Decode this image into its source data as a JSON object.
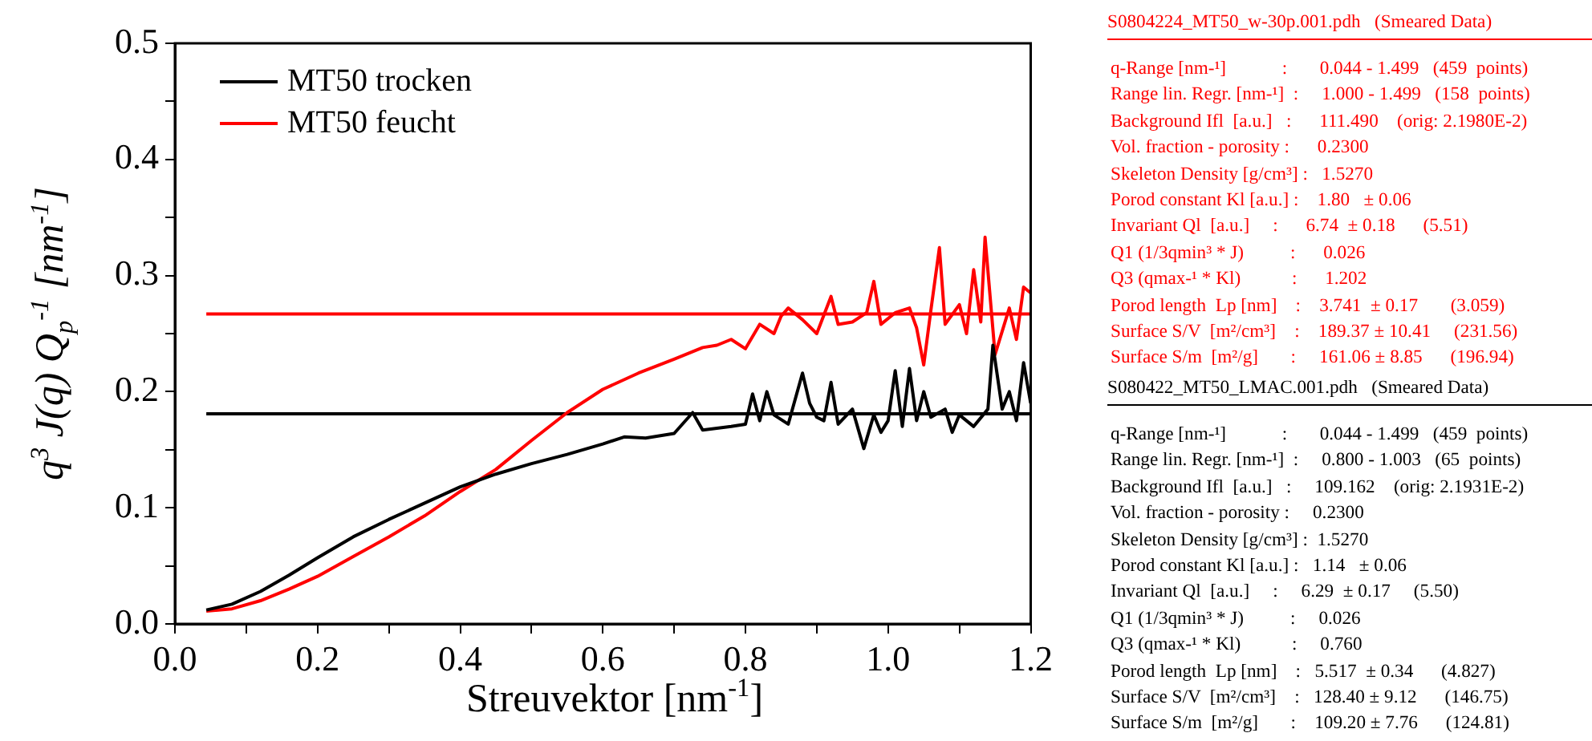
{
  "chart_data": {
    "type": "line",
    "xlabel": "Streuvektor [nm$^{-1}$]",
    "ylabel": "q$^{3}$ J(q) Q$_{p}$$^{-1}$ [nm$^{-1}$]",
    "xlim": [
      0,
      1.2
    ],
    "ylim": [
      0,
      0.5
    ],
    "xticks": [
      {
        "value": 0,
        "label": "0.0"
      },
      {
        "value": 0.1,
        "label": null
      },
      {
        "value": 0.2,
        "label": "0.2"
      },
      {
        "value": 0.3,
        "label": null
      },
      {
        "value": 0.4,
        "label": "0.4"
      },
      {
        "value": 0.5,
        "label": null
      },
      {
        "value": 0.6,
        "label": "0.6"
      },
      {
        "value": 0.7,
        "label": null
      },
      {
        "value": 0.8,
        "label": "0.8"
      },
      {
        "value": 0.9,
        "label": null
      },
      {
        "value": 1.0,
        "label": "1.0"
      },
      {
        "value": 1.1,
        "label": null
      },
      {
        "value": 1.2,
        "label": "1.2"
      }
    ],
    "yticks": [
      {
        "value": 0,
        "label": "0.0"
      },
      {
        "value": 0.05,
        "label": null
      },
      {
        "value": 0.1,
        "label": "0.1"
      },
      {
        "value": 0.15,
        "label": null
      },
      {
        "value": 0.2,
        "label": "0.2"
      },
      {
        "value": 0.25,
        "label": null
      },
      {
        "value": 0.3,
        "label": "0.3"
      },
      {
        "value": 0.35,
        "label": null
      },
      {
        "value": 0.4,
        "label": "0.4"
      },
      {
        "value": 0.45,
        "label": null
      },
      {
        "value": 0.5,
        "label": "0.5"
      }
    ],
    "grid": false,
    "legend": "top left",
    "marker": "none",
    "line_style": "solid",
    "series": [
      {
        "name": "MT50 trocken",
        "color": "#000000",
        "x": [
          0.044,
          0.08,
          0.12,
          0.16,
          0.2,
          0.25,
          0.3,
          0.35,
          0.4,
          0.45,
          0.5,
          0.55,
          0.6,
          0.63,
          0.66,
          0.7,
          0.726,
          0.74,
          0.78,
          0.8,
          0.81,
          0.82,
          0.83,
          0.84,
          0.86,
          0.88,
          0.89,
          0.9,
          0.91,
          0.92,
          0.93,
          0.95,
          0.966,
          0.98,
          0.99,
          1.0,
          1.01,
          1.02,
          1.03,
          1.04,
          1.05,
          1.06,
          1.08,
          1.09,
          1.1,
          1.12,
          1.14,
          1.147,
          1.16,
          1.17,
          1.18,
          1.19,
          1.2
        ],
        "values": [
          0.012,
          0.017,
          0.028,
          0.042,
          0.057,
          0.075,
          0.09,
          0.104,
          0.118,
          0.129,
          0.138,
          0.146,
          0.155,
          0.161,
          0.16,
          0.164,
          0.182,
          0.167,
          0.17,
          0.172,
          0.198,
          0.175,
          0.2,
          0.18,
          0.172,
          0.216,
          0.19,
          0.178,
          0.175,
          0.208,
          0.172,
          0.185,
          0.151,
          0.18,
          0.165,
          0.175,
          0.218,
          0.17,
          0.22,
          0.175,
          0.2,
          0.178,
          0.185,
          0.165,
          0.18,
          0.17,
          0.185,
          0.24,
          0.185,
          0.2,
          0.175,
          0.225,
          0.19
        ]
      },
      {
        "name": "MT50 feucht",
        "color": "#ff0000",
        "x": [
          0.044,
          0.08,
          0.12,
          0.16,
          0.2,
          0.25,
          0.3,
          0.35,
          0.4,
          0.45,
          0.5,
          0.55,
          0.6,
          0.65,
          0.7,
          0.74,
          0.76,
          0.78,
          0.8,
          0.82,
          0.84,
          0.85,
          0.86,
          0.88,
          0.9,
          0.92,
          0.93,
          0.95,
          0.97,
          0.98,
          0.99,
          1.01,
          1.03,
          1.04,
          1.05,
          1.06,
          1.072,
          1.08,
          1.1,
          1.11,
          1.12,
          1.13,
          1.136,
          1.15,
          1.17,
          1.18,
          1.19,
          1.2
        ],
        "values": [
          0.011,
          0.013,
          0.02,
          0.03,
          0.041,
          0.058,
          0.075,
          0.093,
          0.114,
          0.133,
          0.158,
          0.182,
          0.202,
          0.216,
          0.228,
          0.238,
          0.24,
          0.245,
          0.237,
          0.258,
          0.25,
          0.265,
          0.272,
          0.262,
          0.25,
          0.282,
          0.258,
          0.26,
          0.268,
          0.295,
          0.258,
          0.268,
          0.272,
          0.255,
          0.223,
          0.27,
          0.324,
          0.258,
          0.275,
          0.25,
          0.305,
          0.26,
          0.333,
          0.232,
          0.272,
          0.245,
          0.29,
          0.285
        ]
      },
      {
        "color": "#ff0000",
        "x": [
          0.044,
          1.2
        ],
        "values": [
          0.267,
          0.267
        ]
      },
      {
        "color": "#000000",
        "x": [
          0.044,
          1.2
        ],
        "values": [
          0.181,
          0.181
        ]
      }
    ],
    "annotations": [
      "S0804224_MT50_w-30p.001.pdh   (Smeared Data)",
      "q-Range [nm-¹]            :       0.044 - 1.499   (459  points)",
      "Range lin. Regr. [nm-¹]  :     1.000 - 1.499   (158  points)",
      "Background Ifl  [a.u.]   :      111.490    (orig: 2.1980E-2)",
      "Vol. fraction - porosity :      0.2300",
      "Skeleton Density [g/cm³] :   1.5270",
      "Porod constant Kl [a.u.] :    1.80   ± 0.06",
      "Invariant Ql  [a.u.]     :      6.74  ± 0.18      (5.51)",
      "Q1 (1/3qmin³ * J)          :      0.026",
      "Q3 (qmax-¹ * Kl)           :      1.202",
      "Porod length  Lp [nm]    :    3.741  ± 0.17       (3.059)",
      "Surface S/V  [m²/cm³]    :    189.37 ± 10.41     (231.56)",
      "Surface S/m  [m²/g]       :     161.06 ± 8.85      (196.94)",
      "S080422_MT50_LMAC.001.pdh   (Smeared Data)",
      "q-Range [nm-¹]            :       0.044 - 1.499   (459  points)",
      "Range lin. Regr. [nm-¹]  :     0.800 - 1.003   (65  points)",
      "Background Ifl  [a.u.]   :     109.162    (orig: 2.1931E-2)",
      "Vol. fraction - porosity :     0.2300",
      "Skeleton Density [g/cm³] :  1.5270",
      "Porod constant Kl [a.u.] :   1.14   ± 0.06",
      "Invariant Ql  [a.u.]     :     6.29  ± 0.17     (5.50)",
      "Q1 (1/3qmin³ * J)          :     0.026",
      "Q3 (qmax-¹ * Kl)           :     0.760",
      "Porod length  Lp [nm]    :   5.517  ± 0.34      (4.827)",
      "Surface S/V  [m²/cm³]    :   128.40 ± 9.12      (146.75)",
      "Surface S/m  [m²/g]       :    109.20 ± 7.76      (124.81)"
    ]
  }
}
